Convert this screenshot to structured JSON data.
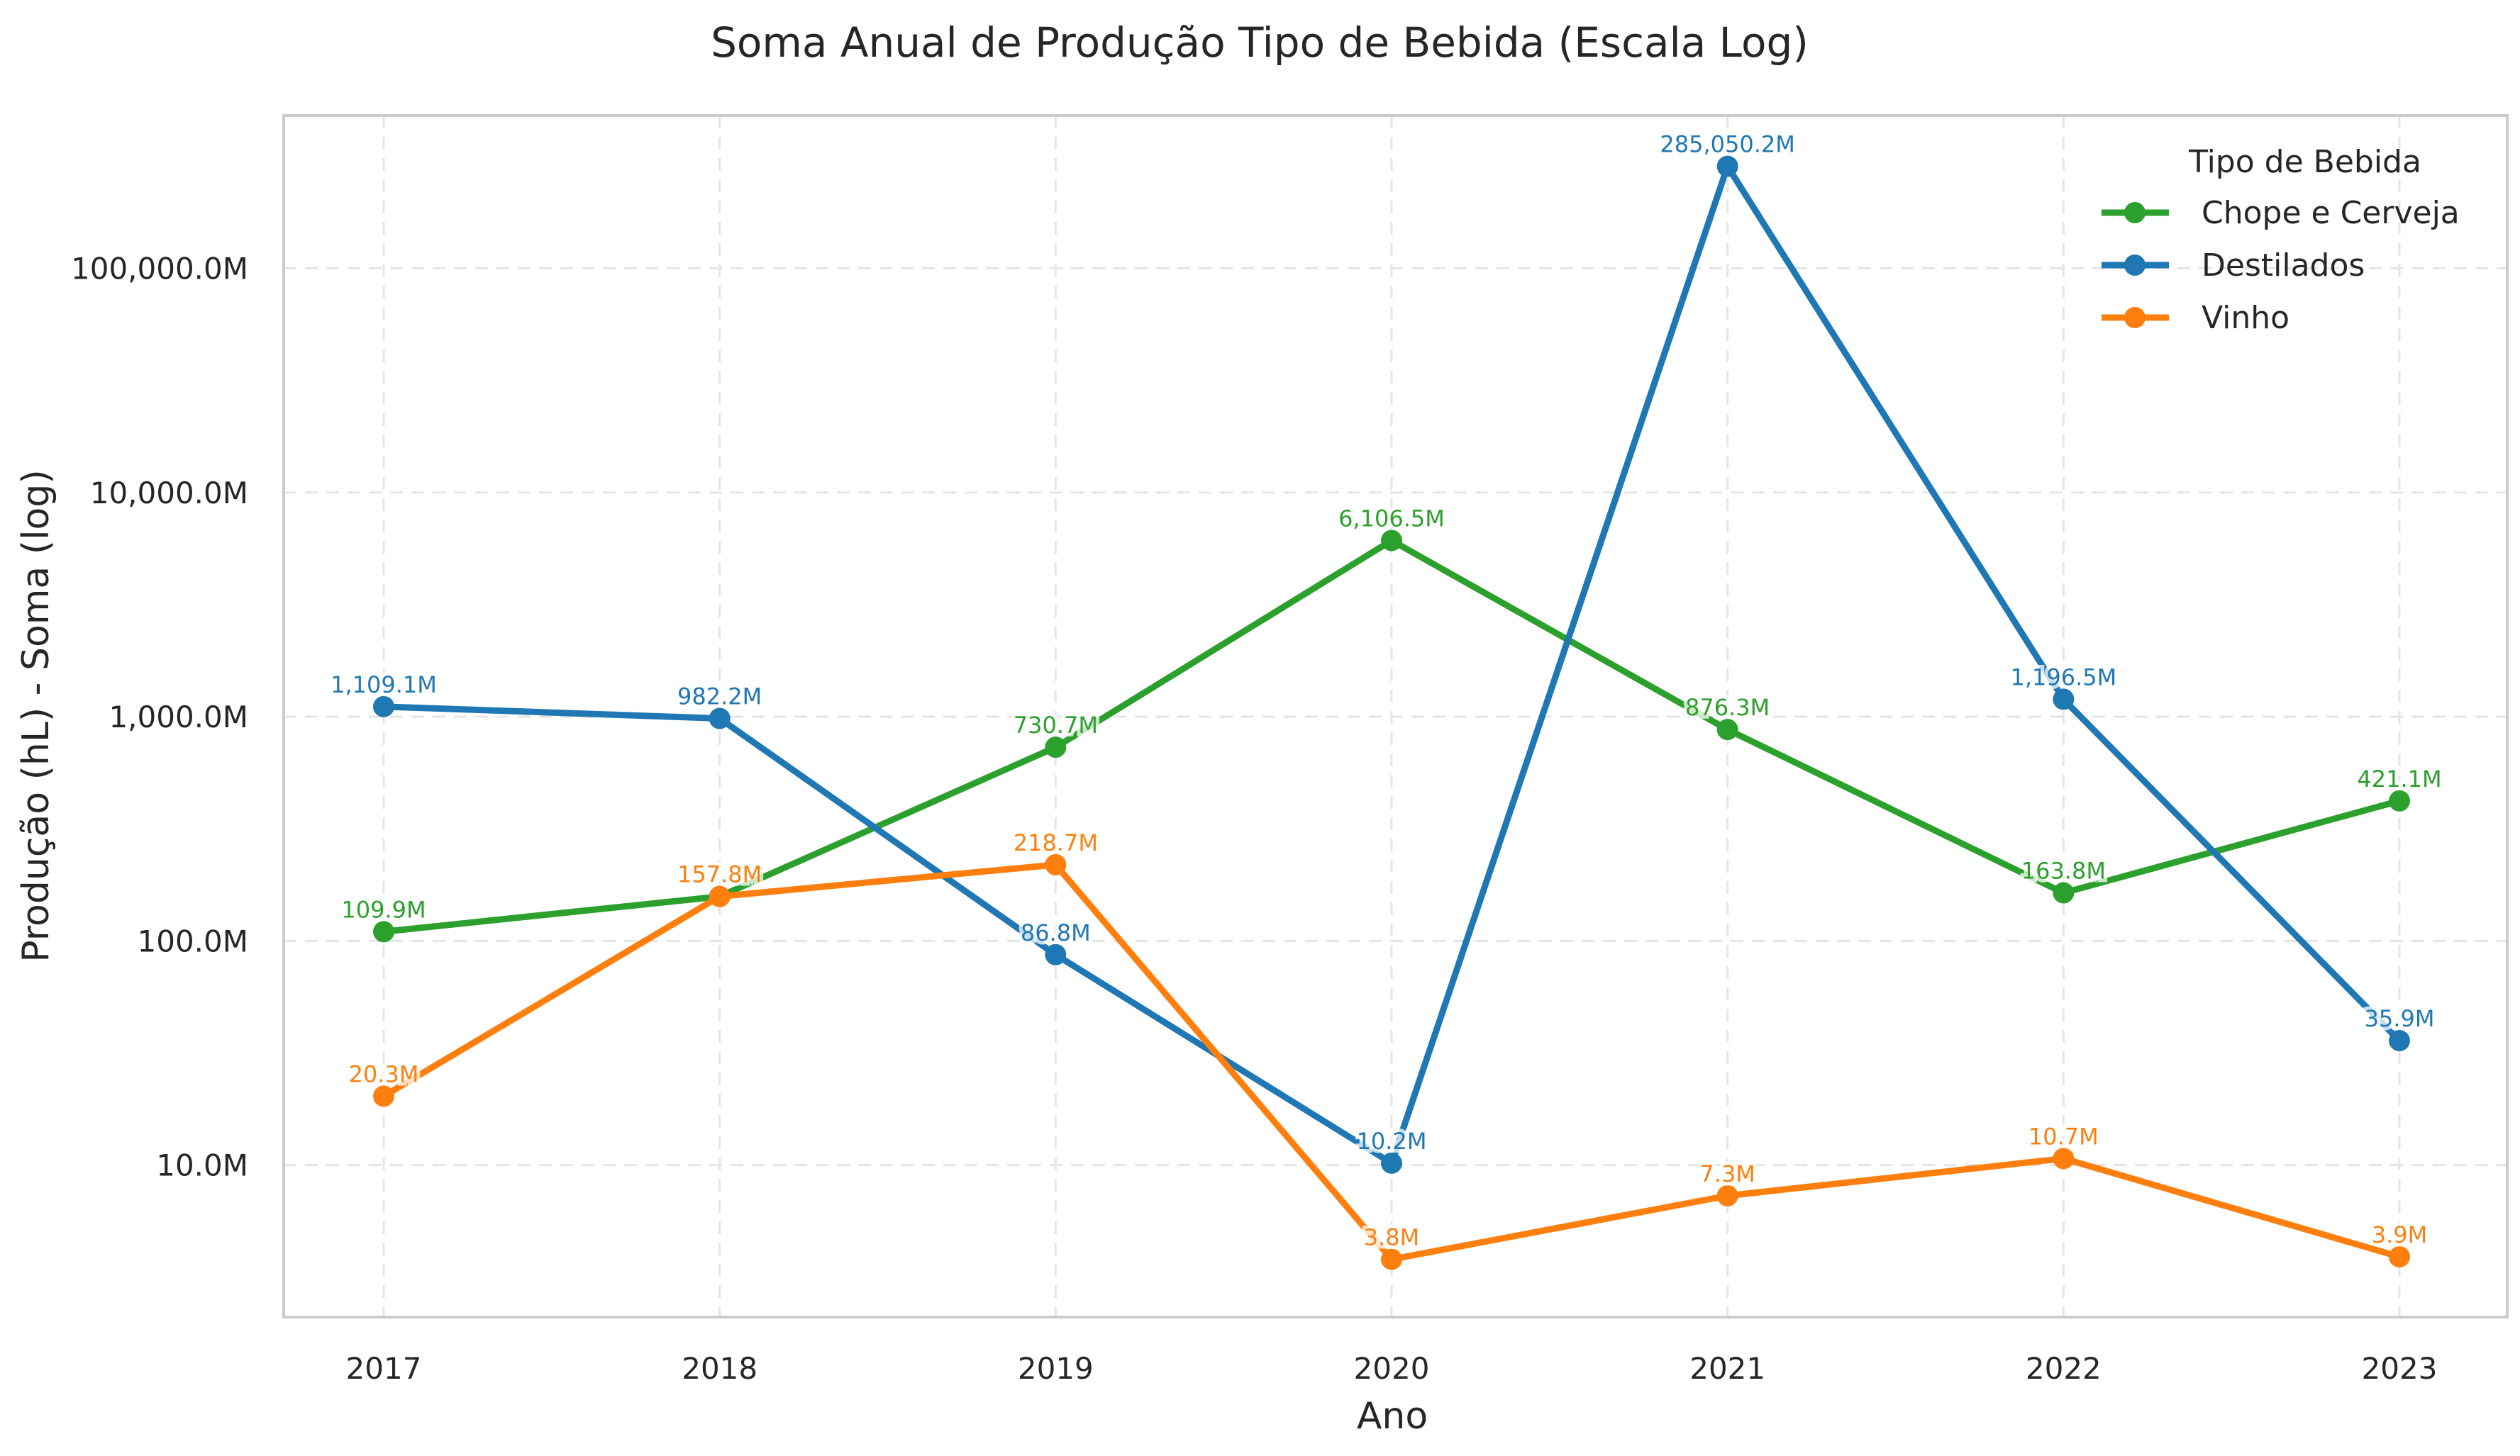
{
  "chart_data": {
    "type": "line",
    "title": "Soma Anual de Produção Tipo de Bebida (Escala Log)",
    "xlabel": "Ano",
    "ylabel": "Produção (hL) - Soma (log)",
    "y_scale": "log",
    "y_unit": "M",
    "ylim": [
      2.1,
      480000
    ],
    "y_ticks": [
      10,
      100,
      1000,
      10000,
      100000
    ],
    "y_tick_labels": [
      "10.0M",
      "100.0M",
      "1,000.0M",
      "10,000.0M",
      "100,000.0M"
    ],
    "categories": [
      "2017",
      "2018",
      "2019",
      "2020",
      "2021",
      "2022",
      "2023"
    ],
    "grid": true,
    "legend_title": "Tipo de Bebida",
    "legend_position": "top-right",
    "series": [
      {
        "name": "Chope e Cerveja",
        "color": "#2ca02c",
        "values": [
          109.9,
          157.8,
          730.7,
          6106.5,
          876.3,
          163.8,
          421.1
        ],
        "labels": [
          "109.9M",
          "",
          "730.7M",
          "6,106.5M",
          "876.3M",
          "163.8M",
          "421.1M"
        ]
      },
      {
        "name": "Destilados",
        "color": "#1f77b4",
        "values": [
          1109.1,
          982.2,
          86.8,
          10.2,
          285050.2,
          1196.5,
          35.9
        ],
        "labels": [
          "1,109.1M",
          "982.2M",
          "86.8M",
          "10.2M",
          "285,050.2M",
          "1,196.5M",
          "35.9M"
        ]
      },
      {
        "name": "Vinho",
        "color": "#ff7f0e",
        "values": [
          20.3,
          157.8,
          218.7,
          3.8,
          7.3,
          10.7,
          3.9
        ],
        "labels": [
          "20.3M",
          "157.8M",
          "218.7M",
          "3.8M",
          "7.3M",
          "10.7M",
          "3.9M"
        ]
      }
    ]
  }
}
